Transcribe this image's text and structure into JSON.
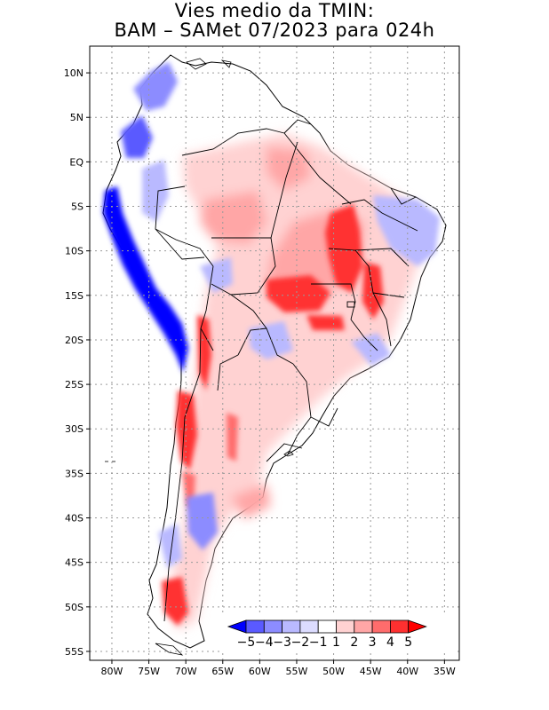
{
  "title": {
    "line1": "Vies medio da TMIN:",
    "line2": "BAM – SAMet 07/2023  para 024h"
  },
  "axes": {
    "lon_labels": [
      "80W",
      "75W",
      "70W",
      "65W",
      "60W",
      "55W",
      "50W",
      "45W",
      "40W",
      "35W"
    ],
    "lat_labels": [
      "10N",
      "5N",
      "EQ",
      "5S",
      "10S",
      "15S",
      "20S",
      "25S",
      "30S",
      "35S",
      "40S",
      "45S",
      "50S",
      "55S"
    ],
    "lon_range": [
      -83,
      -33
    ],
    "lat_range": [
      -56,
      13
    ],
    "grid": "dotted"
  },
  "colorbar": {
    "labels": [
      "−5",
      "−4",
      "−3",
      "−2",
      "−1",
      "1",
      "2",
      "3",
      "4",
      "5"
    ],
    "colors": [
      "#0000ff",
      "#5a5aff",
      "#8c8cff",
      "#b9b9ff",
      "#dcdcff",
      "#ffffff",
      "#ffd2d2",
      "#ffa6a6",
      "#ff6c6c",
      "#ff3030",
      "#ff0000"
    ]
  }
}
